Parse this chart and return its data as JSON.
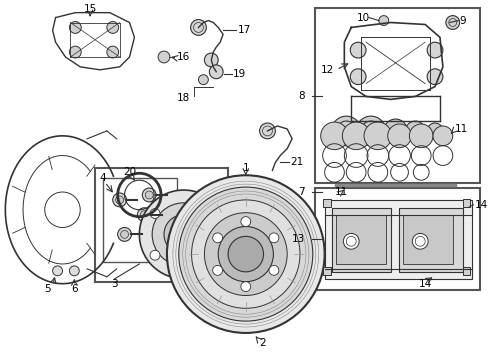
{
  "bg_color": "#ffffff",
  "line_color": "#333333",
  "text_color": "#000000",
  "font_size": 7.5,
  "fig_width": 4.9,
  "fig_height": 3.6,
  "dpi": 100
}
